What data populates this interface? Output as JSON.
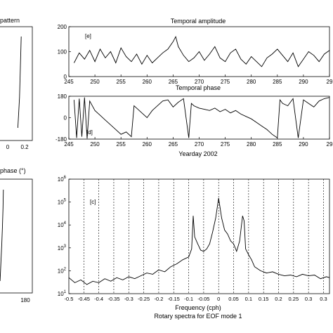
{
  "chart_data": [
    {
      "type": "line",
      "title": "pattern",
      "xticks": [
        "0",
        "0.2"
      ],
      "x": [
        0.0,
        0.02,
        0.04,
        0.06,
        0.08,
        0.1,
        0.12
      ],
      "values": [
        0.12,
        0.13,
        0.14,
        0.145,
        0.15,
        0.155,
        0.16
      ]
    },
    {
      "type": "line",
      "title": "Temporal amplitude",
      "panel_label": "[e]",
      "xlim": [
        245,
        295
      ],
      "ylim": [
        0,
        200
      ],
      "xticks": [
        "245",
        "250",
        "255",
        "260",
        "265",
        "270",
        "275",
        "280",
        "285",
        "290",
        "29"
      ],
      "yticks": [
        "0",
        "100",
        "200"
      ],
      "x": [
        246,
        247,
        248,
        249,
        250,
        251,
        252,
        253,
        254,
        255,
        256,
        257,
        258,
        259,
        260,
        261,
        262,
        263,
        264,
        265,
        265.5,
        266,
        267,
        268,
        269,
        270,
        271,
        272,
        273,
        274,
        275,
        276,
        277,
        278,
        279,
        280,
        281,
        282,
        283,
        284,
        285,
        286,
        287,
        288,
        289,
        290,
        291,
        292,
        293,
        294,
        295
      ],
      "values": [
        55,
        95,
        70,
        105,
        60,
        110,
        75,
        100,
        55,
        115,
        80,
        60,
        90,
        50,
        85,
        55,
        75,
        95,
        110,
        140,
        160,
        120,
        85,
        60,
        75,
        100,
        65,
        90,
        120,
        75,
        60,
        95,
        110,
        70,
        50,
        80,
        60,
        40,
        75,
        90,
        110,
        85,
        60,
        95,
        40,
        70,
        100,
        85,
        60,
        90,
        105
      ]
    },
    {
      "type": "line",
      "title": "Temporal phase",
      "panel_label": "[d]",
      "xlim": [
        245,
        295
      ],
      "ylim": [
        -180,
        180
      ],
      "xticks": [
        "245",
        "250",
        "255",
        "260",
        "265",
        "270",
        "275",
        "280",
        "285",
        "290",
        "29"
      ],
      "yticks": [
        "-180",
        "0",
        "180"
      ],
      "xlabel": "Yearday 2002",
      "x": [
        246,
        246.5,
        247,
        247.5,
        248,
        248.5,
        249,
        250,
        251,
        252,
        253,
        254,
        255,
        256,
        257,
        257.5,
        258,
        259,
        260,
        261,
        262,
        263,
        264,
        265,
        266,
        267,
        268,
        268.5,
        269,
        270,
        271,
        272,
        273,
        274,
        275,
        276,
        277,
        278,
        279,
        280,
        281,
        282,
        283,
        284,
        285,
        285.5,
        286,
        287,
        288,
        289,
        290,
        291,
        292,
        293,
        294,
        295
      ],
      "values": [
        150,
        -170,
        160,
        -160,
        170,
        -175,
        140,
        60,
        20,
        -20,
        -60,
        -100,
        -140,
        -120,
        -160,
        100,
        80,
        40,
        0,
        60,
        100,
        140,
        150,
        90,
        130,
        160,
        -170,
        120,
        100,
        80,
        70,
        60,
        80,
        50,
        70,
        40,
        60,
        30,
        10,
        -10,
        -40,
        -70,
        -100,
        -140,
        -170,
        150,
        120,
        100,
        160,
        -170,
        150,
        120,
        90,
        140,
        160,
        170
      ]
    },
    {
      "type": "line",
      "title": "phase (°)",
      "xticks": [
        "180"
      ],
      "x": [
        0.0,
        0.2,
        0.4,
        0.6,
        0.8,
        1.0
      ],
      "values": [
        0.02,
        0.25,
        0.5,
        0.7,
        0.85,
        0.95
      ]
    },
    {
      "type": "line",
      "panel_label": "[c]",
      "scale": "log",
      "xlim": [
        -0.5,
        0.37
      ],
      "ylim": [
        10,
        1000000
      ],
      "xticks": [
        "-0.5",
        "-0.45",
        "-0.4",
        "-0.35",
        "-0.3",
        "-0.25",
        "-0.2",
        "-0.15",
        "-0.1",
        "-0.05",
        "0",
        "0.05",
        "0.1",
        "0.15",
        "0.2",
        "0.25",
        "0.3",
        "0.3"
      ],
      "yticks": [
        "10^1",
        "10^2",
        "10^3",
        "10^4",
        "10^5",
        "10^6"
      ],
      "grid": "vertical dashed",
      "xlabel": "Frequency (cph)",
      "subtitle": "Rotary spectra for EOF mode 1",
      "x": [
        -0.5,
        -0.48,
        -0.46,
        -0.44,
        -0.42,
        -0.4,
        -0.38,
        -0.36,
        -0.34,
        -0.32,
        -0.3,
        -0.28,
        -0.26,
        -0.24,
        -0.22,
        -0.2,
        -0.18,
        -0.16,
        -0.14,
        -0.12,
        -0.1,
        -0.09,
        -0.085,
        -0.08,
        -0.07,
        -0.06,
        -0.05,
        -0.04,
        -0.03,
        -0.02,
        -0.01,
        0.0,
        0.01,
        0.02,
        0.03,
        0.04,
        0.05,
        0.06,
        0.07,
        0.08,
        0.085,
        0.09,
        0.1,
        0.11,
        0.12,
        0.14,
        0.16,
        0.18,
        0.2,
        0.22,
        0.24,
        0.26,
        0.28,
        0.3,
        0.32,
        0.34,
        0.36,
        0.37
      ],
      "values": [
        50,
        30,
        40,
        25,
        35,
        30,
        45,
        35,
        50,
        40,
        55,
        45,
        60,
        80,
        70,
        110,
        90,
        150,
        200,
        300,
        400,
        900,
        25000,
        3000,
        1500,
        800,
        700,
        900,
        1500,
        5000,
        20000,
        150000,
        20000,
        6000,
        4000,
        2000,
        1500,
        700,
        2000,
        25000,
        15000,
        900,
        500,
        300,
        150,
        100,
        80,
        90,
        70,
        60,
        65,
        55,
        70,
        60,
        65,
        45,
        55,
        50
      ]
    }
  ]
}
